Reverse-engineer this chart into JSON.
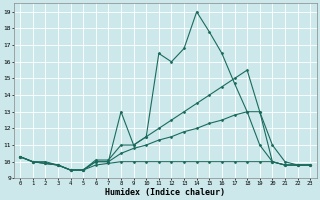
{
  "xlabel": "Humidex (Indice chaleur)",
  "xlim": [
    -0.5,
    23.5
  ],
  "ylim": [
    9,
    19.5
  ],
  "yticks": [
    9,
    10,
    11,
    12,
    13,
    14,
    15,
    16,
    17,
    18,
    19
  ],
  "xticks": [
    0,
    1,
    2,
    3,
    4,
    5,
    6,
    7,
    8,
    9,
    10,
    11,
    12,
    13,
    14,
    15,
    16,
    17,
    18,
    19,
    20,
    21,
    22,
    23
  ],
  "bg_color": "#cce8ea",
  "line_color": "#1a6b5e",
  "grid_color": "#ffffff",
  "lines": [
    {
      "x": [
        0,
        1,
        2,
        3,
        4,
        5,
        6,
        7,
        8,
        9,
        10,
        11,
        12,
        13,
        14,
        15,
        16,
        17,
        18,
        19,
        20,
        21,
        22,
        23
      ],
      "y": [
        10.3,
        10.0,
        10.0,
        9.8,
        9.5,
        9.5,
        10.0,
        10.0,
        13.0,
        11.0,
        11.5,
        16.5,
        16.0,
        16.8,
        19.0,
        17.8,
        16.5,
        14.7,
        13.0,
        11.0,
        10.0,
        9.8,
        9.8,
        9.8
      ]
    },
    {
      "x": [
        0,
        1,
        2,
        3,
        4,
        5,
        6,
        7,
        8,
        9,
        10,
        11,
        12,
        13,
        14,
        15,
        16,
        17,
        18,
        19,
        20,
        21,
        22,
        23
      ],
      "y": [
        10.3,
        10.0,
        9.9,
        9.8,
        9.5,
        9.5,
        10.1,
        10.1,
        11.0,
        11.0,
        11.5,
        12.0,
        12.5,
        13.0,
        13.5,
        14.0,
        14.5,
        15.0,
        15.5,
        13.0,
        11.0,
        10.0,
        9.8,
        9.8
      ]
    },
    {
      "x": [
        0,
        1,
        2,
        3,
        4,
        5,
        6,
        7,
        8,
        9,
        10,
        11,
        12,
        13,
        14,
        15,
        16,
        17,
        18,
        19,
        20,
        21,
        22,
        23
      ],
      "y": [
        10.3,
        10.0,
        9.9,
        9.8,
        9.5,
        9.5,
        10.0,
        10.0,
        10.5,
        10.8,
        11.0,
        11.3,
        11.5,
        11.8,
        12.0,
        12.3,
        12.5,
        12.8,
        13.0,
        13.0,
        10.0,
        9.8,
        9.8,
        9.8
      ]
    },
    {
      "x": [
        0,
        1,
        2,
        3,
        4,
        5,
        6,
        7,
        8,
        9,
        10,
        11,
        12,
        13,
        14,
        15,
        16,
        17,
        18,
        19,
        20,
        21,
        22,
        23
      ],
      "y": [
        10.3,
        10.0,
        9.9,
        9.8,
        9.5,
        9.5,
        9.8,
        9.9,
        10.0,
        10.0,
        10.0,
        10.0,
        10.0,
        10.0,
        10.0,
        10.0,
        10.0,
        10.0,
        10.0,
        10.0,
        10.0,
        9.8,
        9.8,
        9.8
      ]
    }
  ]
}
